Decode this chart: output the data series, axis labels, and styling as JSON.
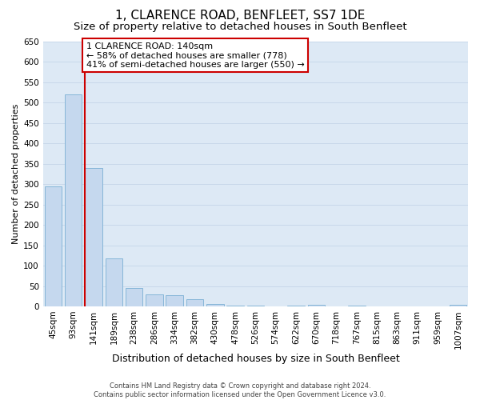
{
  "title": "1, CLARENCE ROAD, BENFLEET, SS7 1DE",
  "subtitle": "Size of property relative to detached houses in South Benfleet",
  "xlabel": "Distribution of detached houses by size in South Benfleet",
  "ylabel": "Number of detached properties",
  "footer_line1": "Contains HM Land Registry data © Crown copyright and database right 2024.",
  "footer_line2": "Contains public sector information licensed under the Open Government Licence v3.0.",
  "bin_labels": [
    "45sqm",
    "93sqm",
    "141sqm",
    "189sqm",
    "238sqm",
    "286sqm",
    "334sqm",
    "382sqm",
    "430sqm",
    "478sqm",
    "526sqm",
    "574sqm",
    "622sqm",
    "670sqm",
    "718sqm",
    "767sqm",
    "815sqm",
    "863sqm",
    "911sqm",
    "959sqm",
    "1007sqm"
  ],
  "bar_values": [
    295,
    520,
    340,
    118,
    46,
    30,
    28,
    18,
    7,
    2,
    2,
    0,
    2,
    5,
    0,
    2,
    0,
    0,
    0,
    0,
    5
  ],
  "bar_color": "#c5d8ee",
  "bar_edge_color": "#7bafd4",
  "grid_color": "#c8d8ea",
  "background_color": "#dde9f5",
  "vline_color": "#cc0000",
  "annotation_line1": "1 CLARENCE ROAD: 140sqm",
  "annotation_line2": "← 58% of detached houses are smaller (778)",
  "annotation_line3": "41% of semi-detached houses are larger (550) →",
  "annotation_box_facecolor": "#ffffff",
  "annotation_box_edgecolor": "#cc0000",
  "ylim": [
    0,
    650
  ],
  "yticks": [
    0,
    50,
    100,
    150,
    200,
    250,
    300,
    350,
    400,
    450,
    500,
    550,
    600,
    650
  ],
  "title_fontsize": 11,
  "subtitle_fontsize": 9.5,
  "xlabel_fontsize": 9,
  "ylabel_fontsize": 8,
  "tick_fontsize": 7.5,
  "annotation_fontsize": 8
}
